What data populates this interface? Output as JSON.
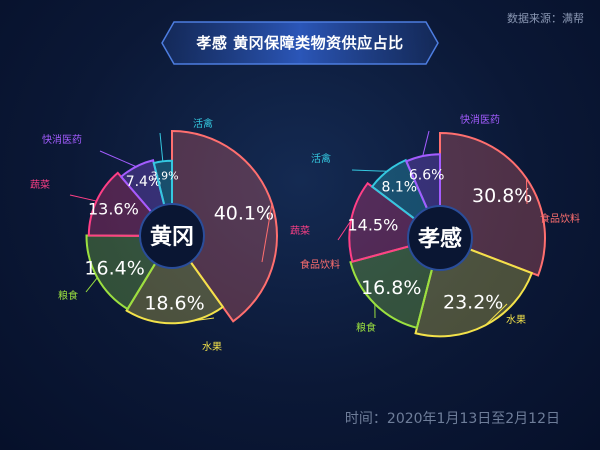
{
  "header": {
    "title": "孝感 黄冈保障类物资供应占比",
    "source": "数据来源：满帮"
  },
  "footer": {
    "time": "时间：2020年1月13日至2月12日"
  },
  "colors": {
    "食品饮料": "#ff6f6f",
    "水果": "#f3e24a",
    "粮食": "#9be040",
    "蔬菜": "#ff3f86",
    "快消医药": "#a35cff",
    "活禽": "#34c8e0"
  },
  "chart_data": [
    {
      "type": "pie",
      "center_label": "黄冈",
      "categories": [
        "食品饮料",
        "水果",
        "粮食",
        "蔬菜",
        "快消医药",
        "活禽"
      ],
      "values": [
        40.1,
        18.6,
        16.4,
        13.6,
        7.4,
        3.9
      ],
      "value_labels": [
        "40.1%",
        "18.6%",
        "16.4%",
        "13.6%",
        "7.4%",
        "3.9%"
      ]
    },
    {
      "type": "pie",
      "center_label": "孝感",
      "categories": [
        "食品饮料",
        "水果",
        "粮食",
        "蔬菜",
        "活禽",
        "快消医药"
      ],
      "values": [
        30.8,
        23.2,
        16.8,
        14.5,
        8.1,
        6.6
      ],
      "value_labels": [
        "30.8%",
        "23.2%",
        "16.8%",
        "14.5%",
        "8.1%",
        "6.6%"
      ]
    }
  ]
}
